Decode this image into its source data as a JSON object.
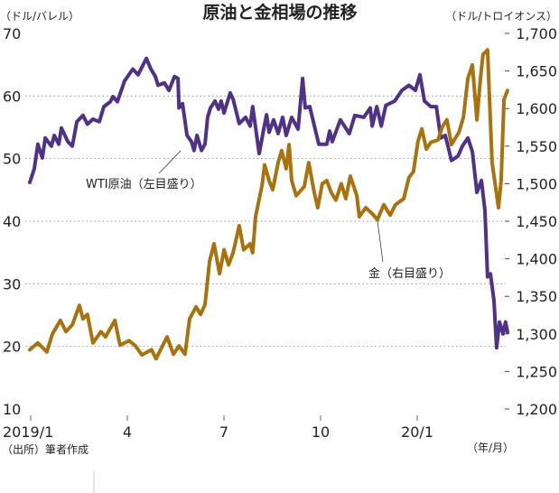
{
  "chart_data": {
    "type": "line",
    "title": "原油と金相場の推移",
    "left_axis": {
      "unit_label": "（ドル/バレル）",
      "ylim": [
        10,
        70
      ],
      "ticks": [
        "70",
        "60",
        "50",
        "40",
        "30",
        "20",
        "10"
      ],
      "tick_values": [
        70,
        60,
        50,
        40,
        30,
        20,
        10
      ]
    },
    "right_axis": {
      "unit_label": "（ドル/トロイオンス）",
      "ylim": [
        1200,
        1700
      ],
      "ticks": [
        "1,700",
        "1,650",
        "1,600",
        "1,550",
        "1,500",
        "1,450",
        "1,400",
        "1,350",
        "1,300",
        "1,250",
        "1,200"
      ],
      "tick_values": [
        1700,
        1650,
        1600,
        1550,
        1500,
        1450,
        1400,
        1350,
        1300,
        1250,
        1200
      ]
    },
    "x_axis": {
      "unit_label": "（年/月）",
      "ticks": [
        "2019/1",
        "4",
        "7",
        "10",
        "20/1"
      ],
      "tick_months": [
        0,
        3,
        6,
        9,
        12
      ],
      "xlim_months": [
        0,
        14.9
      ]
    },
    "grid": {
      "on": true,
      "style": "dotted",
      "left_values": [
        20,
        30,
        40,
        50,
        60
      ]
    },
    "source": "（出所）筆者作成",
    "series": [
      {
        "name": "WTI原油（左目盛り）",
        "axis": "left",
        "color": "#4f3286",
        "points": [
          [
            0,
            46.2
          ],
          [
            0.14,
            48.4
          ],
          [
            0.25,
            52.3
          ],
          [
            0.39,
            50.1
          ],
          [
            0.48,
            53.3
          ],
          [
            0.67,
            52.0
          ],
          [
            0.76,
            53.7
          ],
          [
            0.9,
            52.3
          ],
          [
            0.98,
            54.9
          ],
          [
            1.09,
            53.7
          ],
          [
            1.18,
            52.7
          ],
          [
            1.32,
            52.0
          ],
          [
            1.46,
            55.9
          ],
          [
            1.65,
            56.9
          ],
          [
            1.79,
            55.5
          ],
          [
            1.96,
            56.3
          ],
          [
            2.16,
            55.9
          ],
          [
            2.3,
            58.3
          ],
          [
            2.5,
            59.1
          ],
          [
            2.58,
            59.9
          ],
          [
            2.72,
            59.1
          ],
          [
            2.94,
            62.4
          ],
          [
            3.2,
            64.3
          ],
          [
            3.36,
            63.4
          ],
          [
            3.62,
            66.0
          ],
          [
            3.76,
            64.3
          ],
          [
            3.9,
            63.1
          ],
          [
            3.98,
            61.7
          ],
          [
            4.18,
            62.1
          ],
          [
            4.32,
            60.9
          ],
          [
            4.49,
            63.1
          ],
          [
            4.6,
            62.8
          ],
          [
            4.63,
            58.1
          ],
          [
            4.74,
            58.8
          ],
          [
            4.88,
            53.7
          ],
          [
            5.02,
            52.7
          ],
          [
            5.1,
            51.3
          ],
          [
            5.19,
            53.7
          ],
          [
            5.33,
            51.3
          ],
          [
            5.44,
            52.3
          ],
          [
            5.52,
            56.6
          ],
          [
            5.61,
            58.1
          ],
          [
            5.75,
            59.2
          ],
          [
            5.86,
            57.9
          ],
          [
            5.94,
            59.2
          ],
          [
            6.03,
            57.3
          ],
          [
            6.22,
            60.5
          ],
          [
            6.31,
            59.5
          ],
          [
            6.5,
            55.6
          ],
          [
            6.7,
            56.6
          ],
          [
            6.84,
            55.2
          ],
          [
            6.92,
            58.3
          ],
          [
            7.12,
            50.8
          ],
          [
            7.26,
            54.7
          ],
          [
            7.35,
            57.0
          ],
          [
            7.43,
            54.2
          ],
          [
            7.57,
            56.2
          ],
          [
            7.71,
            54.0
          ],
          [
            7.85,
            56.6
          ],
          [
            7.96,
            53.7
          ],
          [
            8.13,
            56.6
          ],
          [
            8.33,
            54.7
          ],
          [
            8.47,
            62.8
          ],
          [
            8.55,
            58.1
          ],
          [
            8.69,
            58.3
          ],
          [
            8.97,
            52.3
          ],
          [
            9.22,
            52.3
          ],
          [
            9.31,
            54.4
          ],
          [
            9.39,
            52.7
          ],
          [
            9.64,
            56.2
          ],
          [
            9.92,
            54.0
          ],
          [
            10.09,
            56.9
          ],
          [
            10.37,
            56.6
          ],
          [
            10.57,
            58.1
          ],
          [
            10.63,
            55.2
          ],
          [
            10.77,
            58.3
          ],
          [
            10.91,
            55.2
          ],
          [
            11.05,
            58.5
          ],
          [
            11.33,
            59.2
          ],
          [
            11.55,
            60.9
          ],
          [
            11.77,
            61.7
          ],
          [
            11.97,
            60.9
          ],
          [
            12.11,
            63.4
          ],
          [
            12.25,
            59.2
          ],
          [
            12.45,
            58.3
          ],
          [
            12.62,
            58.3
          ],
          [
            12.76,
            53.3
          ],
          [
            12.9,
            53.7
          ],
          [
            13.09,
            49.7
          ],
          [
            13.29,
            50.4
          ],
          [
            13.43,
            52.0
          ],
          [
            13.6,
            53.3
          ],
          [
            13.74,
            51.1
          ],
          [
            13.88,
            44.6
          ],
          [
            14.02,
            46.5
          ],
          [
            14.13,
            41.7
          ],
          [
            14.21,
            31.1
          ],
          [
            14.3,
            31.6
          ],
          [
            14.41,
            27.3
          ],
          [
            14.49,
            19.8
          ],
          [
            14.58,
            23.9
          ],
          [
            14.69,
            22.0
          ],
          [
            14.77,
            23.9
          ],
          [
            14.83,
            22.3
          ]
        ]
      },
      {
        "name": "金（右目盛り）",
        "axis": "right",
        "color": "#a8720f",
        "points": [
          [
            0,
            1279
          ],
          [
            0.25,
            1288
          ],
          [
            0.53,
            1276
          ],
          [
            0.7,
            1300
          ],
          [
            0.95,
            1318
          ],
          [
            1.12,
            1303
          ],
          [
            1.32,
            1312
          ],
          [
            1.54,
            1338
          ],
          [
            1.65,
            1320
          ],
          [
            1.79,
            1326
          ],
          [
            1.96,
            1288
          ],
          [
            2.21,
            1303
          ],
          [
            2.35,
            1296
          ],
          [
            2.64,
            1318
          ],
          [
            2.8,
            1285
          ],
          [
            3.08,
            1291
          ],
          [
            3.28,
            1284
          ],
          [
            3.48,
            1272
          ],
          [
            3.78,
            1279
          ],
          [
            3.92,
            1267
          ],
          [
            4.26,
            1296
          ],
          [
            4.46,
            1273
          ],
          [
            4.63,
            1284
          ],
          [
            4.82,
            1273
          ],
          [
            4.96,
            1320
          ],
          [
            5.16,
            1336
          ],
          [
            5.3,
            1326
          ],
          [
            5.44,
            1339
          ],
          [
            5.58,
            1396
          ],
          [
            5.72,
            1420
          ],
          [
            5.89,
            1380
          ],
          [
            6.03,
            1412
          ],
          [
            6.17,
            1392
          ],
          [
            6.31,
            1408
          ],
          [
            6.5,
            1444
          ],
          [
            6.64,
            1412
          ],
          [
            6.84,
            1420
          ],
          [
            6.92,
            1408
          ],
          [
            7.01,
            1456
          ],
          [
            7.21,
            1498
          ],
          [
            7.29,
            1525
          ],
          [
            7.35,
            1516
          ],
          [
            7.43,
            1504
          ],
          [
            7.54,
            1492
          ],
          [
            7.71,
            1528
          ],
          [
            7.82,
            1544
          ],
          [
            7.96,
            1520
          ],
          [
            8.05,
            1552
          ],
          [
            8.13,
            1504
          ],
          [
            8.27,
            1484
          ],
          [
            8.52,
            1496
          ],
          [
            8.66,
            1528
          ],
          [
            8.83,
            1488
          ],
          [
            8.94,
            1468
          ],
          [
            9.08,
            1500
          ],
          [
            9.22,
            1504
          ],
          [
            9.36,
            1488
          ],
          [
            9.5,
            1478
          ],
          [
            9.67,
            1500
          ],
          [
            9.81,
            1480
          ],
          [
            9.95,
            1510
          ],
          [
            10.15,
            1484
          ],
          [
            10.23,
            1456
          ],
          [
            10.43,
            1468
          ],
          [
            10.63,
            1460
          ],
          [
            10.79,
            1452
          ],
          [
            10.99,
            1472
          ],
          [
            11.19,
            1458
          ],
          [
            11.35,
            1472
          ],
          [
            11.61,
            1480
          ],
          [
            11.77,
            1508
          ],
          [
            11.91,
            1516
          ],
          [
            12.05,
            1556
          ],
          [
            12.17,
            1573
          ],
          [
            12.31,
            1546
          ],
          [
            12.45,
            1555
          ],
          [
            12.67,
            1558
          ],
          [
            12.81,
            1576
          ],
          [
            12.95,
            1585
          ],
          [
            13.09,
            1552
          ],
          [
            13.32,
            1568
          ],
          [
            13.46,
            1588
          ],
          [
            13.6,
            1640
          ],
          [
            13.74,
            1658
          ],
          [
            13.88,
            1585
          ],
          [
            13.99,
            1640
          ],
          [
            14.07,
            1672
          ],
          [
            14.21,
            1678
          ],
          [
            14.35,
            1528
          ],
          [
            14.55,
            1468
          ],
          [
            14.63,
            1504
          ],
          [
            14.72,
            1612
          ],
          [
            14.83,
            1624
          ]
        ]
      }
    ]
  }
}
